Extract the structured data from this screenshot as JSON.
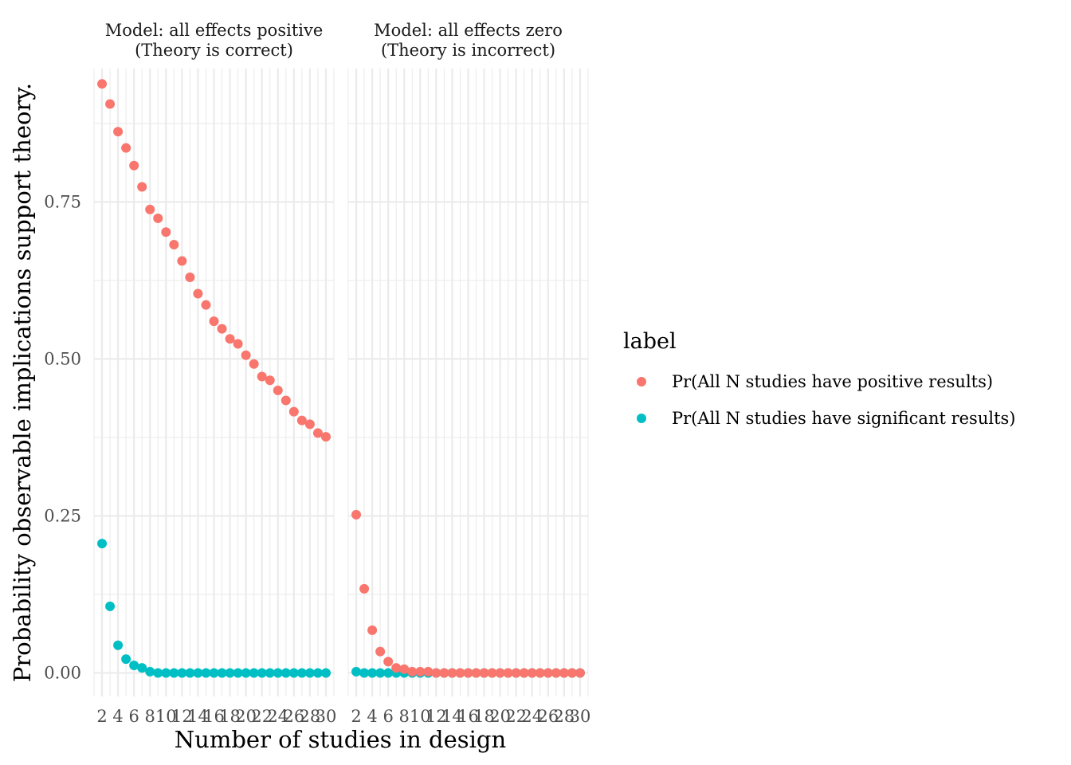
{
  "chart_data": {
    "type": "scatter",
    "xlabel": "Number of studies in design",
    "ylabel": "Probability observable implications support theory.",
    "xlim": [
      1,
      31
    ],
    "ylim": [
      -0.0375,
      0.9625
    ],
    "x_ticks": [
      2,
      4,
      6,
      8,
      10,
      12,
      14,
      16,
      18,
      20,
      22,
      24,
      26,
      28,
      30
    ],
    "y_ticks": [
      0.0,
      0.25,
      0.5,
      0.75
    ],
    "y_tick_labels": [
      "0.00",
      "0.25",
      "0.50",
      "0.75"
    ],
    "grid": true,
    "legend": {
      "title": "label",
      "placement": "right",
      "entries": [
        {
          "name": "Pr(All N studies have positive results)",
          "color": "#F8766D"
        },
        {
          "name": "Pr(All N studies have significant results)",
          "color": "#00BFC4"
        }
      ]
    },
    "x": [
      2,
      3,
      4,
      5,
      6,
      7,
      8,
      9,
      10,
      11,
      12,
      13,
      14,
      15,
      16,
      17,
      18,
      19,
      20,
      21,
      22,
      23,
      24,
      25,
      26,
      27,
      28,
      29,
      30
    ],
    "panels": [
      {
        "title_line1": "Model: all effects positive",
        "title_line2": "(Theory is correct)",
        "series": [
          {
            "name": "Pr(All N studies have positive results)",
            "color": "#F8766D",
            "values": [
              0.938,
              0.906,
              0.862,
              0.836,
              0.808,
              0.774,
              0.738,
              0.724,
              0.702,
              0.682,
              0.656,
              0.63,
              0.604,
              0.586,
              0.56,
              0.548,
              0.532,
              0.524,
              0.506,
              0.492,
              0.472,
              0.466,
              0.45,
              0.434,
              0.416,
              0.402,
              0.396,
              0.382,
              0.376
            ]
          },
          {
            "name": "Pr(All N studies have significant results)",
            "color": "#00BFC4",
            "values": [
              0.206,
              0.106,
              0.044,
              0.022,
              0.012,
              0.008,
              0.002,
              0.0,
              0.0,
              0.0,
              0.0,
              0.0,
              0.0,
              0.0,
              0.0,
              0.0,
              0.0,
              0.0,
              0.0,
              0.0,
              0.0,
              0.0,
              0.0,
              0.0,
              0.0,
              0.0,
              0.0,
              0.0,
              0.0
            ]
          }
        ]
      },
      {
        "title_line1": "Model: all effects zero",
        "title_line2": "(Theory is incorrect)",
        "series": [
          {
            "name": "Pr(All N studies have positive results)",
            "color": "#F8766D",
            "values": [
              0.252,
              0.134,
              0.068,
              0.034,
              0.018,
              0.008,
              0.006,
              0.002,
              0.002,
              0.002,
              0.0,
              0.0,
              0.0,
              0.0,
              0.0,
              0.0,
              0.0,
              0.0,
              0.0,
              0.0,
              0.0,
              0.0,
              0.0,
              0.0,
              0.0,
              0.0,
              0.0,
              0.0,
              0.0
            ]
          },
          {
            "name": "Pr(All N studies have significant results)",
            "color": "#00BFC4",
            "values": [
              0.002,
              0.0,
              0.0,
              0.0,
              0.0,
              0.0,
              0.0,
              0.0,
              0.0,
              0.0,
              0.0,
              0.0,
              0.0,
              0.0,
              0.0,
              0.0,
              0.0,
              0.0,
              0.0,
              0.0,
              0.0,
              0.0,
              0.0,
              0.0,
              0.0,
              0.0,
              0.0,
              0.0,
              0.0
            ]
          }
        ]
      }
    ]
  }
}
